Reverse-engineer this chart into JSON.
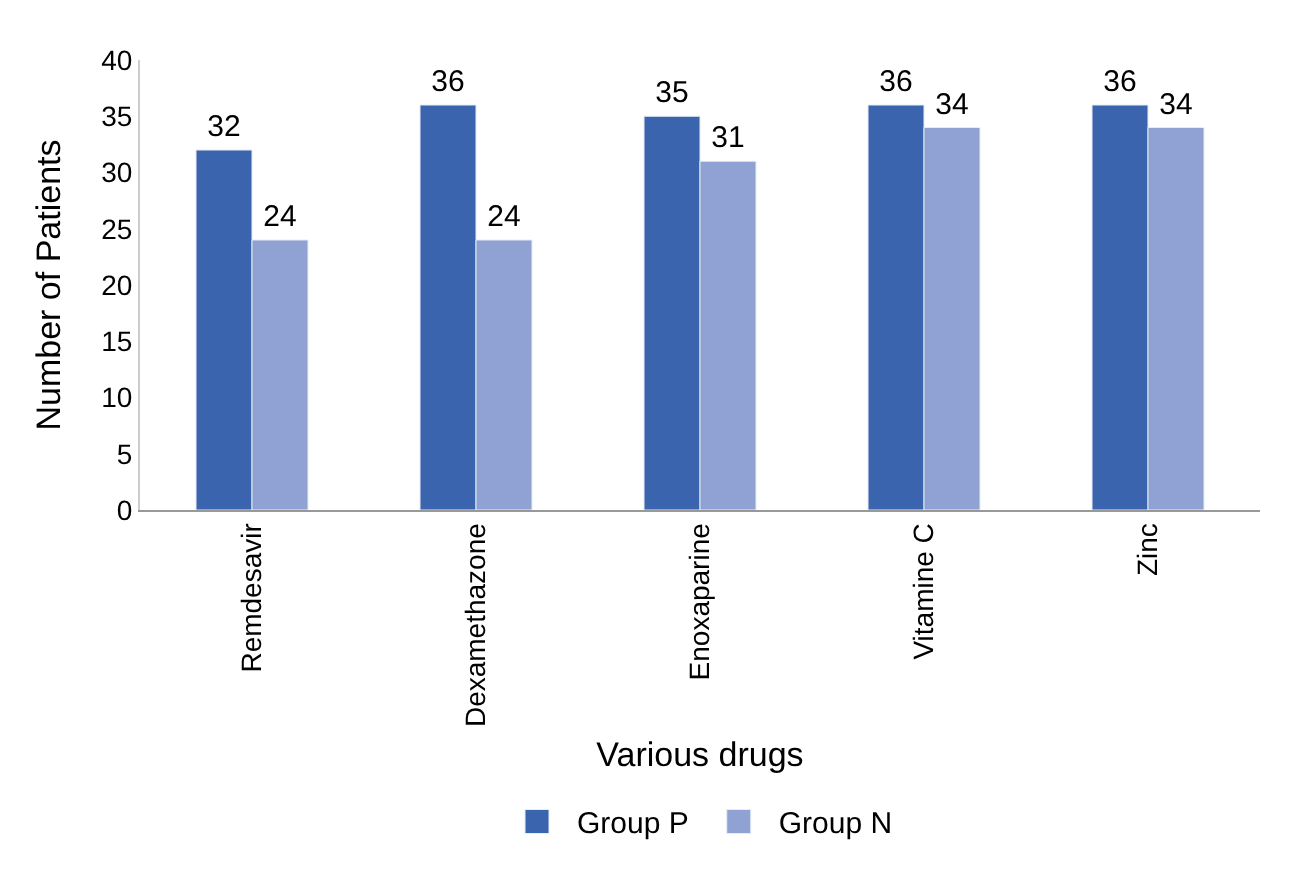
{
  "chart_data": {
    "type": "bar",
    "xlabel": "Various drugs",
    "ylabel": "Number of Patients",
    "categories": [
      "Remdesavir",
      "Dexamethazone",
      "Enoxaparine",
      "Vitamine C",
      "Zinc"
    ],
    "series": [
      {
        "name": "Group P",
        "color": "#3a64ae",
        "values": [
          32,
          36,
          35,
          36,
          36
        ]
      },
      {
        "name": "Group N",
        "color": "#8fa2d3",
        "values": [
          24,
          24,
          31,
          34,
          34
        ]
      }
    ],
    "ylim": [
      0,
      40
    ],
    "yticks": [
      0,
      5,
      10,
      15,
      20,
      25,
      30,
      35,
      40
    ],
    "legend": "bottom",
    "data_labels": true
  }
}
